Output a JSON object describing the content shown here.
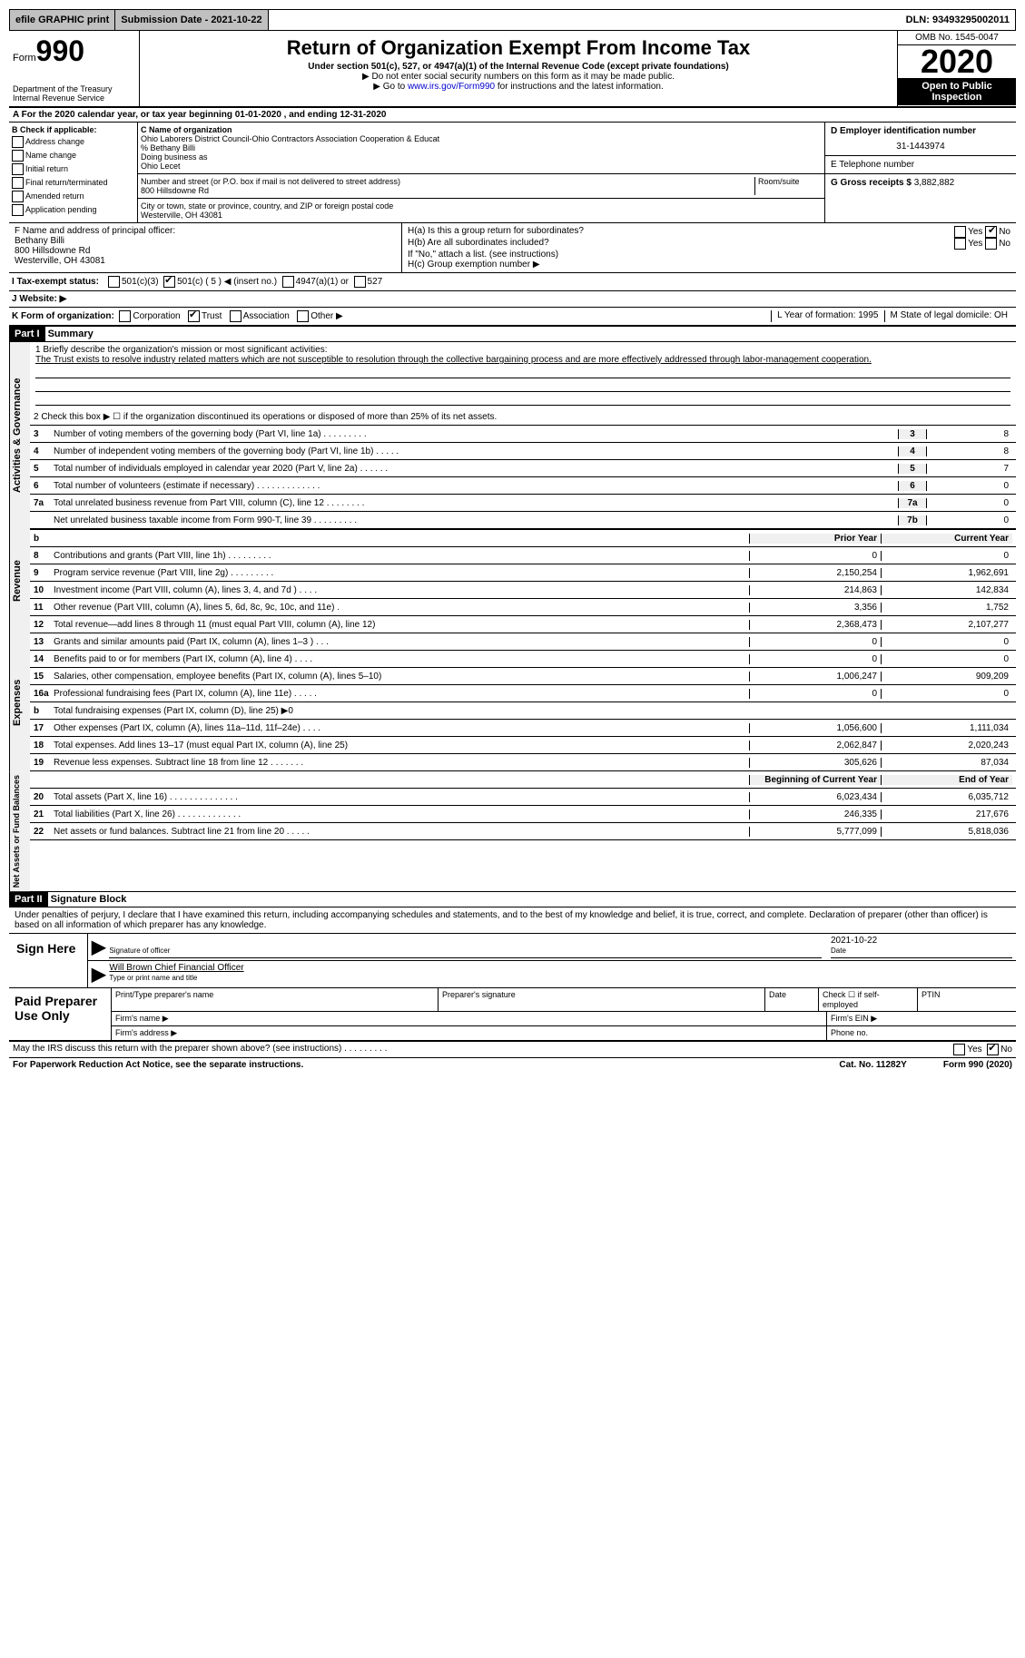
{
  "topbar": {
    "efile": "efile GRAPHIC print",
    "submission": "Submission Date - 2021-10-22",
    "dln": "DLN: 93493295002011"
  },
  "header": {
    "form_small": "Form",
    "form_num": "990",
    "dept": "Department of the Treasury\nInternal Revenue Service",
    "title": "Return of Organization Exempt From Income Tax",
    "subtitle": "Under section 501(c), 527, or 4947(a)(1) of the Internal Revenue Code (except private foundations)",
    "note1": "▶ Do not enter social security numbers on this form as it may be made public.",
    "note2_pre": "▶ Go to ",
    "note2_link": "www.irs.gov/Form990",
    "note2_post": " for instructions and the latest information.",
    "omb": "OMB No. 1545-0047",
    "year": "2020",
    "inspect": "Open to Public Inspection"
  },
  "row_a": "A For the 2020 calendar year, or tax year beginning 01-01-2020    , and ending 12-31-2020",
  "section_b": {
    "label": "B Check if applicable:",
    "opts": [
      "Address change",
      "Name change",
      "Initial return",
      "Final return/terminated",
      "Amended return",
      "Application pending"
    ]
  },
  "section_c": {
    "label": "C Name of organization",
    "name": "Ohio Laborers District Council-Ohio Contractors Association Cooperation & Educat",
    "care": "% Bethany Billi",
    "dba_label": "Doing business as",
    "dba": "Ohio Lecet",
    "street_label": "Number and street (or P.O. box if mail is not delivered to street address)",
    "street": "800 Hillsdowne Rd",
    "room_label": "Room/suite",
    "city_label": "City or town, state or province, country, and ZIP or foreign postal code",
    "city": "Westerville, OH  43081"
  },
  "section_d": {
    "label": "D Employer identification number",
    "val": "31-1443974"
  },
  "section_e": {
    "label": "E Telephone number",
    "val": ""
  },
  "section_g": {
    "label": "G Gross receipts $",
    "val": "3,882,882"
  },
  "section_f": {
    "label": "F  Name and address of principal officer:",
    "name": "Bethany Billi",
    "addr1": "800 Hillsdowne Rd",
    "addr2": "Westerville, OH  43081"
  },
  "section_h": {
    "ha": "H(a)  Is this a group return for subordinates?",
    "hb": "H(b)  Are all subordinates included?",
    "hb_note": "If \"No,\" attach a list. (see instructions)",
    "hc": "H(c)  Group exemption number ▶",
    "yes": "Yes",
    "no": "No"
  },
  "row_i": {
    "label": "I  Tax-exempt status:",
    "o1": "501(c)(3)",
    "o2": "501(c) ( 5 ) ◀ (insert no.)",
    "o3": "4947(a)(1) or",
    "o4": "527"
  },
  "row_j": "J  Website: ▶",
  "row_k": {
    "label": "K Form of organization:",
    "opts": [
      "Corporation",
      "Trust",
      "Association",
      "Other ▶"
    ],
    "l": "L Year of formation: 1995",
    "m": "M State of legal domicile: OH"
  },
  "parts": {
    "p1": "Part I",
    "p1t": "Summary",
    "p2": "Part II",
    "p2t": "Signature Block"
  },
  "summary": {
    "q1_label": "1   Briefly describe the organization's mission or most significant activities:",
    "q1_text": "The Trust exists to resolve industry related matters which are not susceptible to resolution through the collective bargaining process and are more effectively addressed through labor-management cooperation.",
    "q2": "2   Check this box ▶ ☐  if the organization discontinued its operations or disposed of more than 25% of its net assets.",
    "lines_gov": [
      {
        "n": "3",
        "t": "Number of voting members of the governing body (Part VI, line 1a)   .    .    .    .    .    .    .    .    .",
        "b": "3",
        "v": "8"
      },
      {
        "n": "4",
        "t": "Number of independent voting members of the governing body (Part VI, line 1b)   .    .    .    .    .",
        "b": "4",
        "v": "8"
      },
      {
        "n": "5",
        "t": "Total number of individuals employed in calendar year 2020 (Part V, line 2a)   .    .    .    .    .    .",
        "b": "5",
        "v": "7"
      },
      {
        "n": "6",
        "t": "Total number of volunteers (estimate if necessary)   .    .    .    .    .    .    .    .    .    .    .    .    .",
        "b": "6",
        "v": "0"
      },
      {
        "n": "7a",
        "t": "Total unrelated business revenue from Part VIII, column (C), line 12   .    .    .    .    .    .    .    .",
        "b": "7a",
        "v": "0"
      },
      {
        "n": "",
        "t": "Net unrelated business taxable income from Form 990-T, line 39   .    .    .    .    .    .    .    .    .",
        "b": "7b",
        "v": "0"
      }
    ],
    "py_header": "Prior Year",
    "cy_header": "Current Year",
    "lines_rev": [
      {
        "n": "8",
        "t": "Contributions and grants (Part VIII, line 1h)   .    .    .    .    .    .    .    .    .",
        "py": "0",
        "cy": "0"
      },
      {
        "n": "9",
        "t": "Program service revenue (Part VIII, line 2g)   .    .    .    .    .    .    .    .    .",
        "py": "2,150,254",
        "cy": "1,962,691"
      },
      {
        "n": "10",
        "t": "Investment income (Part VIII, column (A), lines 3, 4, and 7d )   .    .    .    .",
        "py": "214,863",
        "cy": "142,834"
      },
      {
        "n": "11",
        "t": "Other revenue (Part VIII, column (A), lines 5, 6d, 8c, 9c, 10c, and 11e)   .",
        "py": "3,356",
        "cy": "1,752"
      },
      {
        "n": "12",
        "t": "Total revenue—add lines 8 through 11 (must equal Part VIII, column (A), line 12)",
        "py": "2,368,473",
        "cy": "2,107,277"
      }
    ],
    "lines_exp": [
      {
        "n": "13",
        "t": "Grants and similar amounts paid (Part IX, column (A), lines 1–3 )   .    .    .",
        "py": "0",
        "cy": "0"
      },
      {
        "n": "14",
        "t": "Benefits paid to or for members (Part IX, column (A), line 4)   .    .    .    .",
        "py": "0",
        "cy": "0"
      },
      {
        "n": "15",
        "t": "Salaries, other compensation, employee benefits (Part IX, column (A), lines 5–10)",
        "py": "1,006,247",
        "cy": "909,209"
      },
      {
        "n": "16a",
        "t": "Professional fundraising fees (Part IX, column (A), line 11e)   .    .    .    .    .",
        "py": "0",
        "cy": "0"
      },
      {
        "n": "b",
        "t": "Total fundraising expenses (Part IX, column (D), line 25) ▶0",
        "py": "",
        "cy": "",
        "shaded": true
      },
      {
        "n": "17",
        "t": "Other expenses (Part IX, column (A), lines 11a–11d, 11f–24e)   .    .    .    .",
        "py": "1,056,600",
        "cy": "1,111,034"
      },
      {
        "n": "18",
        "t": "Total expenses. Add lines 13–17 (must equal Part IX, column (A), line 25)",
        "py": "2,062,847",
        "cy": "2,020,243"
      },
      {
        "n": "19",
        "t": "Revenue less expenses. Subtract line 18 from line 12 .    .    .    .    .    .    .",
        "py": "305,626",
        "cy": "87,034"
      }
    ],
    "bcy_header": "Beginning of Current Year",
    "eoy_header": "End of Year",
    "lines_net": [
      {
        "n": "20",
        "t": "Total assets (Part X, line 16)   .    .    .    .    .    .    .    .    .    .    .    .    .    .",
        "py": "6,023,434",
        "cy": "6,035,712"
      },
      {
        "n": "21",
        "t": "Total liabilities (Part X, line 26)   .    .    .    .    .    .    .    .    .    .    .    .    .",
        "py": "246,335",
        "cy": "217,676"
      },
      {
        "n": "22",
        "t": "Net assets or fund balances. Subtract line 21 from line 20 .    .    .    .    .",
        "py": "5,777,099",
        "cy": "5,818,036"
      }
    ],
    "vtabs": {
      "gov": "Activities & Governance",
      "rev": "Revenue",
      "exp": "Expenses",
      "net": "Net Assets or Fund Balances"
    }
  },
  "sig": {
    "penalty": "Under penalties of perjury, I declare that I have examined this return, including accompanying schedules and statements, and to the best of my knowledge and belief, it is true, correct, and complete. Declaration of preparer (other than officer) is based on all information of which preparer has any knowledge.",
    "sign_here": "Sign Here",
    "sig_officer": "Signature of officer",
    "date": "Date",
    "date_val": "2021-10-22",
    "officer_name": "Will Brown Chief Financial Officer",
    "type_name": "Type or print name and title",
    "paid": "Paid Preparer Use Only",
    "h1": "Print/Type preparer's name",
    "h2": "Preparer's signature",
    "h3": "Date",
    "h4": "Check ☐ if self-employed",
    "h5": "PTIN",
    "firm_name": "Firm's name   ▶",
    "firm_ein": "Firm's EIN ▶",
    "firm_addr": "Firm's address ▶",
    "phone": "Phone no.",
    "may": "May the IRS discuss this return with the preparer shown above? (see instructions)   .    .    .    .    .    .    .    .    .",
    "yes": "Yes",
    "no": "No"
  },
  "footer": {
    "pra": "For Paperwork Reduction Act Notice, see the separate instructions.",
    "cat": "Cat. No. 11282Y",
    "form": "Form 990 (2020)"
  }
}
